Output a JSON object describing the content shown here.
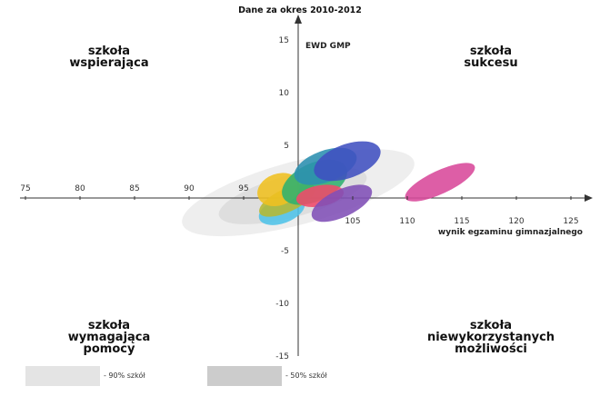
{
  "chart_data": {
    "type": "scatter",
    "title": "Dane za okres 2010-2012",
    "xlabel": "wynik egzaminu gimnazjalnego",
    "ylabel": "EWD GMP",
    "xlim": [
      75,
      127
    ],
    "ylim": [
      -15,
      15
    ],
    "x_ticks": [
      "75",
      "80",
      "85",
      "90",
      "95",
      "105",
      "110",
      "115",
      "120",
      "125"
    ],
    "y_ticks": [
      "15",
      "10",
      "5",
      "-5",
      "-10",
      "-15"
    ],
    "quadrants": {
      "top_left": [
        "szkoła",
        "wspierająca"
      ],
      "top_right": [
        "szkoła",
        "sukcesu"
      ],
      "bottom_left": [
        "szkoła",
        "wymagająca",
        "pomocy"
      ],
      "bottom_right": [
        "szkoła",
        "niewykorzystanych",
        "możliwości"
      ]
    },
    "legend": [
      {
        "label": "- 90% szkół",
        "color": "#e4e4e4"
      },
      {
        "label": "- 50% szkół",
        "color": "#cccccc"
      }
    ],
    "background_ellipses": [
      {
        "cx": 100,
        "cy": 0.5,
        "rx": 11,
        "ry": 3,
        "angle": 15,
        "color": "#ececec"
      },
      {
        "cx": 99.5,
        "cy": 0.2,
        "rx": 7,
        "ry": 2,
        "angle": 15,
        "color": "#dcdcdc"
      }
    ],
    "ellipses": [
      {
        "cx": 98.5,
        "cy": -1.2,
        "rx": 2.2,
        "ry": 1.2,
        "angle": 20,
        "color": "#4fc3e8"
      },
      {
        "cx": 99.0,
        "cy": -0.2,
        "rx": 2.8,
        "ry": 1.1,
        "angle": 25,
        "color": "#b5b832"
      },
      {
        "cx": 98.2,
        "cy": 0.8,
        "rx": 2.0,
        "ry": 1.5,
        "angle": 20,
        "color": "#f0c020"
      },
      {
        "cx": 101.5,
        "cy": 1.5,
        "rx": 3.2,
        "ry": 1.8,
        "angle": 25,
        "color": "#2fb070"
      },
      {
        "cx": 102.5,
        "cy": 3.0,
        "rx": 3.0,
        "ry": 1.5,
        "angle": 20,
        "color": "#2b8fb0"
      },
      {
        "cx": 102.0,
        "cy": 0.2,
        "rx": 2.2,
        "ry": 1.0,
        "angle": 10,
        "color": "#f04a6a"
      },
      {
        "cx": 104.0,
        "cy": -0.5,
        "rx": 3.0,
        "ry": 1.3,
        "angle": 25,
        "color": "#7f4fb6"
      },
      {
        "cx": 104.5,
        "cy": 3.5,
        "rx": 3.2,
        "ry": 1.6,
        "angle": 20,
        "color": "#4050c0"
      },
      {
        "cx": 113.0,
        "cy": 1.5,
        "rx": 3.5,
        "ry": 1.1,
        "angle": 25,
        "color": "#d8489a"
      }
    ]
  }
}
